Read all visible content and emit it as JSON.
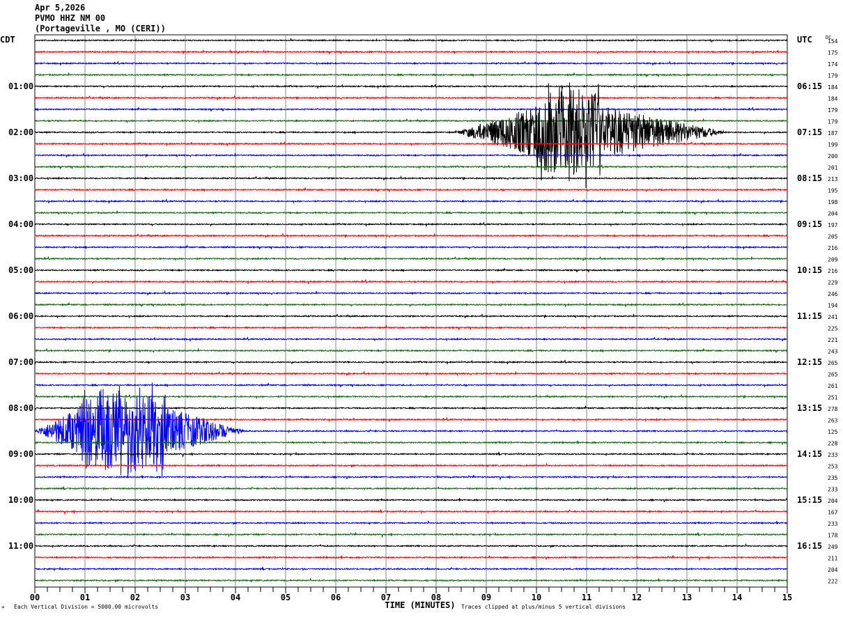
{
  "header": {
    "date": "Apr 5,2026",
    "station": "PVMO HHZ NM 00",
    "location": "(Portageville , MO (CERI))"
  },
  "footer": {
    "scale_note": "Each Vertical Division = 5000.00 microvolts",
    "clip_note": "Traces clipped at plus/minus 5 vertical divisions"
  },
  "chart_data": {
    "type": "line",
    "title": "PVMO HHZ NM 00 helicorder",
    "xlabel": "TIME (MINUTES)",
    "xlim": [
      0,
      15
    ],
    "x_ticks": [
      "00",
      "01",
      "02",
      "03",
      "04",
      "05",
      "06",
      "07",
      "08",
      "09",
      "10",
      "11",
      "12",
      "13",
      "14",
      "15"
    ],
    "left_axis_title": "CDT",
    "right_axis_title": "UTC",
    "dc_title": "DC",
    "left_labels": {
      "4": "01:00",
      "8": "02:00",
      "12": "03:00",
      "16": "04:00",
      "20": "05:00",
      "24": "06:00",
      "28": "07:00",
      "32": "08:00",
      "36": "09:00",
      "40": "10:00",
      "44": "11:00"
    },
    "right_labels": {
      "4": "06:15",
      "8": "07:15",
      "12": "08:15",
      "16": "09:15",
      "20": "10:15",
      "24": "11:15",
      "28": "12:15",
      "32": "13:15",
      "36": "14:15",
      "40": "15:15",
      "44": "16:15"
    },
    "dc_values": [
      154,
      175,
      174,
      179,
      184,
      184,
      179,
      179,
      187,
      199,
      200,
      201,
      213,
      195,
      198,
      204,
      197,
      205,
      216,
      209,
      216,
      229,
      246,
      194,
      241,
      225,
      221,
      243,
      265,
      265,
      261,
      251,
      278,
      263,
      125,
      228,
      233,
      253,
      235,
      233,
      204,
      167,
      233,
      178,
      249,
      211,
      204,
      222
    ],
    "trace_colors": [
      "#000000",
      "#ff0000",
      "#0000ff",
      "#007000"
    ],
    "clip_divisions": 5,
    "events": [
      {
        "trace": 8,
        "start_min": 8.4,
        "peak_start_min": 10.0,
        "peak_end_min": 11.3,
        "end_min": 13.8,
        "peak_amplitude_div": 5
      },
      {
        "trace": 34,
        "start_min": 0.0,
        "peak_start_min": 0.9,
        "peak_end_min": 2.6,
        "end_min": 4.2,
        "peak_amplitude_div": 4.5
      }
    ]
  }
}
